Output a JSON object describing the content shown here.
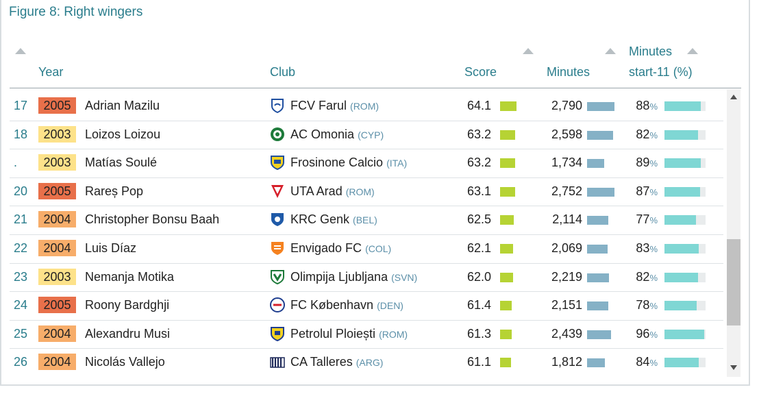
{
  "title": "Figure 8: Right wingers",
  "columns": {
    "year": "Year",
    "club": "Club",
    "score": "Score",
    "minutes": "Minutes",
    "start11_line1": "Minutes",
    "start11_line2": "start-11 (%)"
  },
  "colors": {
    "year_2005": "#e8704a",
    "year_2004": "#f7ad6a",
    "year_2003": "#fde28a",
    "score_bar": "#b6d334",
    "minutes_bar": "#85b1c6",
    "pct_bar": "#7fd7d4"
  },
  "rows": [
    {
      "rank": "17",
      "year": "2005",
      "name": "Adrian Mazilu",
      "club": "FCV Farul",
      "country": "(ROM)",
      "crest": "farul-crest-icon",
      "score": "64.1",
      "score_value": 64.1,
      "minutes": "2,790",
      "minutes_value": 2790,
      "pct": "88",
      "pct_value": 88
    },
    {
      "rank": "18",
      "year": "2003",
      "name": "Loizos Loizou",
      "club": "AC Omonia",
      "country": "(CYP)",
      "crest": "omonia-crest-icon",
      "score": "63.2",
      "score_value": 63.2,
      "minutes": "2,598",
      "minutes_value": 2598,
      "pct": "82",
      "pct_value": 82
    },
    {
      "rank": ".",
      "year": "2003",
      "name": "Matías Soulé",
      "club": "Frosinone Calcio",
      "country": "(ITA)",
      "crest": "frosinone-crest-icon",
      "score": "63.2",
      "score_value": 63.2,
      "minutes": "1,734",
      "minutes_value": 1734,
      "pct": "89",
      "pct_value": 89
    },
    {
      "rank": "20",
      "year": "2005",
      "name": "Rareș Pop",
      "club": "UTA Arad",
      "country": "(ROM)",
      "crest": "uta-arad-crest-icon",
      "score": "63.1",
      "score_value": 63.1,
      "minutes": "2,752",
      "minutes_value": 2752,
      "pct": "87",
      "pct_value": 87
    },
    {
      "rank": "21",
      "year": "2004",
      "name": "Christopher Bonsu Baah",
      "club": "KRC Genk",
      "country": "(BEL)",
      "crest": "genk-crest-icon",
      "score": "62.5",
      "score_value": 62.5,
      "minutes": "2,114",
      "minutes_value": 2114,
      "pct": "77",
      "pct_value": 77
    },
    {
      "rank": "22",
      "year": "2004",
      "name": "Luis Díaz",
      "club": "Envigado FC",
      "country": "(COL)",
      "crest": "envigado-crest-icon",
      "score": "62.1",
      "score_value": 62.1,
      "minutes": "2,069",
      "minutes_value": 2069,
      "pct": "83",
      "pct_value": 83
    },
    {
      "rank": "23",
      "year": "2003",
      "name": "Nemanja Motika",
      "club": "Olimpija Ljubljana",
      "country": "(SVN)",
      "crest": "olimpija-crest-icon",
      "score": "62.0",
      "score_value": 62.0,
      "minutes": "2,219",
      "minutes_value": 2219,
      "pct": "82",
      "pct_value": 82
    },
    {
      "rank": "24",
      "year": "2005",
      "name": "Roony Bardghji",
      "club": "FC København",
      "country": "(DEN)",
      "crest": "kobenhavn-crest-icon",
      "score": "61.4",
      "score_value": 61.4,
      "minutes": "2,151",
      "minutes_value": 2151,
      "pct": "78",
      "pct_value": 78
    },
    {
      "rank": "25",
      "year": "2004",
      "name": "Alexandru Musi",
      "club": "Petrolul Ploiești",
      "country": "(ROM)",
      "crest": "petrolul-crest-icon",
      "score": "61.3",
      "score_value": 61.3,
      "minutes": "2,439",
      "minutes_value": 2439,
      "pct": "96",
      "pct_value": 96
    },
    {
      "rank": "26",
      "year": "2004",
      "name": "Nicolás Vallejo",
      "club": "CA Talleres",
      "country": "(ARG)",
      "crest": "talleres-crest-icon",
      "score": "61.1",
      "score_value": 61.1,
      "minutes": "1,812",
      "minutes_value": 1812,
      "pct": "84",
      "pct_value": 84
    }
  ]
}
